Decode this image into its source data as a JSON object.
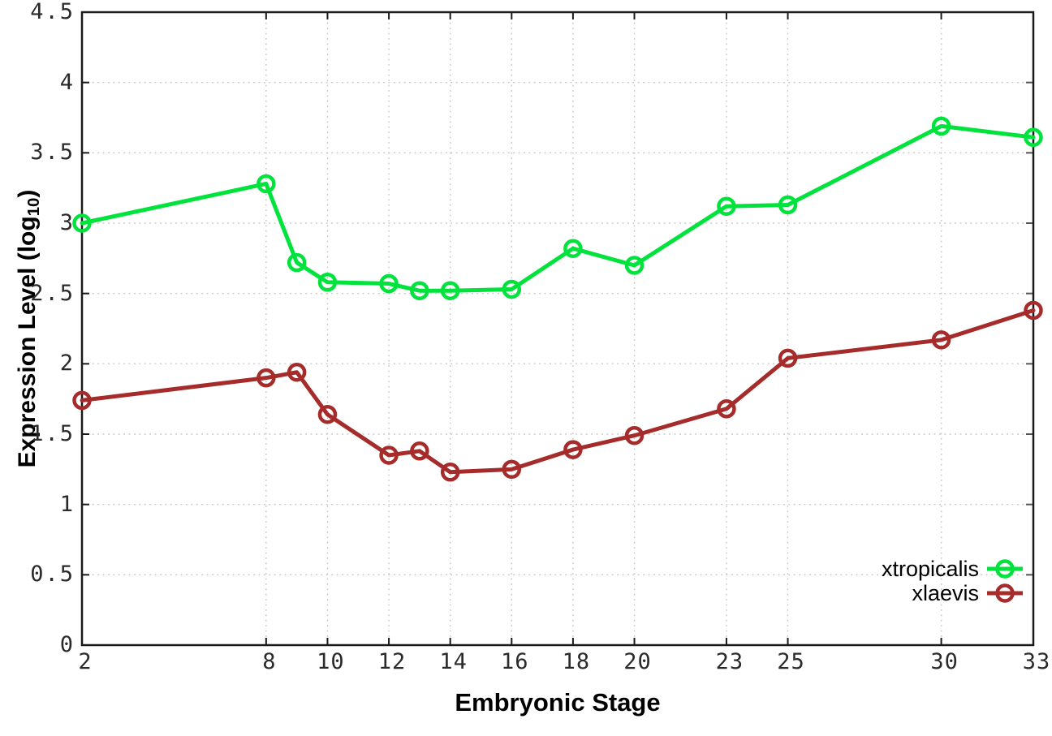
{
  "figure": {
    "background": "#ffffff"
  },
  "chart_data": {
    "type": "line",
    "title": "",
    "xlabel": "Embryonic Stage",
    "ylabel": "Expression Level (log10)",
    "ylabel_parts": {
      "pre": "Expression Level (log",
      "sub": "10",
      "post": ")"
    },
    "xlim": [
      2,
      33
    ],
    "ylim": [
      0,
      4.5
    ],
    "x_ticks": [
      2,
      8,
      10,
      12,
      14,
      16,
      18,
      20,
      23,
      25,
      30,
      33
    ],
    "y_ticks": [
      0,
      0.5,
      1,
      1.5,
      2,
      2.5,
      3,
      3.5,
      4,
      4.5
    ],
    "y_tick_labels": [
      "0",
      "0.5",
      "1",
      "1.5",
      "2",
      "2.5",
      "3",
      "3.5",
      "4",
      "4.5"
    ],
    "grid": true,
    "legend_position": "bottom-right-inside",
    "x": [
      2,
      8,
      9,
      10,
      12,
      13,
      14,
      16,
      18,
      20,
      23,
      25,
      30,
      33
    ],
    "series": [
      {
        "name": "xtropicalis",
        "color": "#00e23c",
        "values": [
          3.0,
          3.28,
          2.72,
          2.58,
          2.57,
          2.52,
          2.52,
          2.53,
          2.82,
          2.7,
          3.12,
          3.13,
          3.69,
          3.61
        ]
      },
      {
        "name": "xlaevis",
        "color": "#a62b2b",
        "values": [
          1.74,
          1.9,
          1.94,
          1.64,
          1.35,
          1.38,
          1.23,
          1.25,
          1.39,
          1.49,
          1.68,
          2.04,
          2.17,
          2.38
        ]
      }
    ],
    "colors": {
      "axis": "#1a1a1a",
      "grid": "#c6c6c6",
      "tick_label": "#2a2a2a"
    }
  }
}
